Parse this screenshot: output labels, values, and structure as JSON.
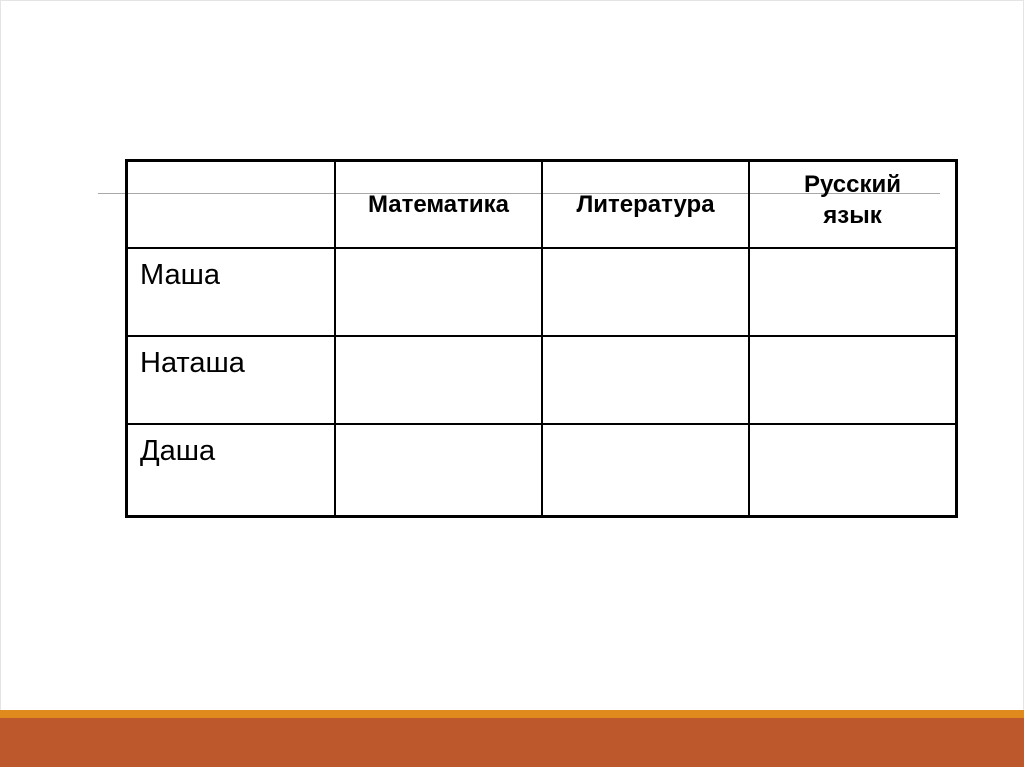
{
  "table": {
    "headers": [
      "",
      "Математика",
      "Литература",
      "Русский язык"
    ],
    "rows": [
      {
        "name": "Маша",
        "cells": [
          "",
          "",
          ""
        ]
      },
      {
        "name": "Наташа",
        "cells": [
          "",
          "",
          ""
        ]
      },
      {
        "name": "Даша",
        "cells": [
          "",
          "",
          ""
        ]
      }
    ]
  },
  "colors": {
    "accent_stripe": "#e08a1e",
    "footer_band": "#bd582c"
  }
}
